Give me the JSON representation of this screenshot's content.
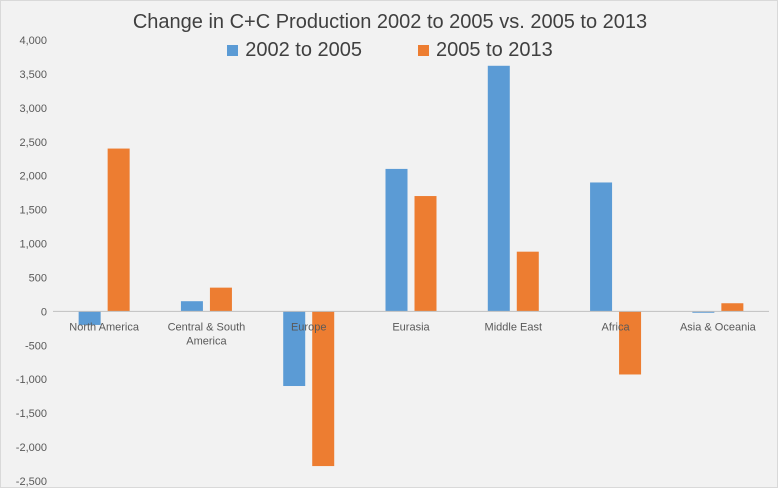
{
  "chart_data": {
    "type": "bar",
    "title": "Change in C+C Production 2002 to 2005 vs. 2005 to 2013",
    "xlabel": "",
    "ylabel": "",
    "categories": [
      [
        "North America"
      ],
      [
        "Central & South",
        "America"
      ],
      [
        "Europe"
      ],
      [
        "Eurasia"
      ],
      [
        "Middle East"
      ],
      [
        "Africa"
      ],
      [
        "Asia & Oceania"
      ]
    ],
    "series": [
      {
        "name": "2002 to 2005",
        "color": "#5b9bd5",
        "values": [
          -200,
          150,
          -1100,
          2100,
          3620,
          1900,
          -20
        ]
      },
      {
        "name": "2005 to 2013",
        "color": "#ed7d31",
        "values": [
          2400,
          350,
          -2280,
          1700,
          880,
          -930,
          120
        ]
      }
    ],
    "ylim": [
      -2500,
      4000
    ],
    "yticks": [
      -2500,
      -2000,
      -1500,
      -1000,
      -500,
      0,
      500,
      1000,
      1500,
      2000,
      2500,
      3000,
      3500,
      4000
    ],
    "ytick_labels": [
      "-2,500",
      "-2,000",
      "-1,500",
      "-1,000",
      "-500",
      "0",
      "500",
      "1,000",
      "1,500",
      "2,000",
      "2,500",
      "3,000",
      "3,500",
      "4,000"
    ],
    "legend_position": "top",
    "grid": false
  }
}
